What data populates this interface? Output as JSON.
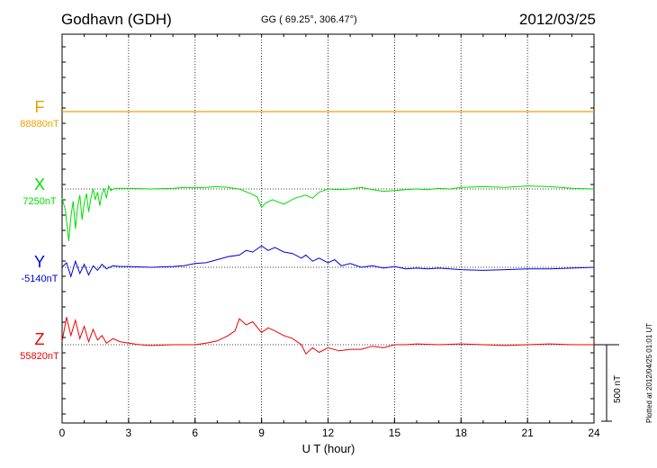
{
  "header": {
    "station": "Godhavn (GDH)",
    "coords": "GG ( 69.25°, 306.47°)",
    "date": "2012/03/25"
  },
  "plotted_note": "Plotted at 2012/04/25 01:01  UT",
  "scale_label": "500 nT",
  "chart_data": {
    "type": "line",
    "title": "Godhavn (GDH)",
    "xlabel": "U T (hour)",
    "ylabel": "",
    "xlim": [
      0,
      24
    ],
    "xticks": [
      "0",
      "3",
      "6",
      "9",
      "12",
      "15",
      "18",
      "21",
      "24"
    ],
    "grid": true,
    "scale_bar_nT": 500,
    "series": [
      {
        "name": "F",
        "baseline_label": "88880nT",
        "color": "#f0a000",
        "offset_nT": 0,
        "x": [
          0,
          1,
          2,
          3,
          4,
          5,
          6,
          7,
          8,
          9,
          10,
          11,
          12,
          13,
          14,
          15,
          16,
          17,
          18,
          19,
          20,
          21,
          22,
          23,
          24
        ],
        "y": [
          0,
          0,
          0,
          0,
          0,
          0,
          0,
          0,
          0,
          0,
          0,
          0,
          0,
          0,
          0,
          0,
          0,
          0,
          0,
          0,
          0,
          0,
          0,
          0,
          0
        ]
      },
      {
        "name": "X",
        "baseline_label": "7250nT",
        "color": "#00dd00",
        "offset_nT": 0,
        "x": [
          0,
          0.15,
          0.3,
          0.4,
          0.5,
          0.6,
          0.7,
          0.8,
          0.9,
          1.0,
          1.1,
          1.2,
          1.3,
          1.4,
          1.5,
          1.6,
          1.7,
          1.8,
          1.9,
          2.0,
          2.1,
          2.2,
          2.3,
          2.5,
          3,
          4,
          5,
          5.5,
          6,
          6.5,
          7,
          7.5,
          8,
          8.5,
          8.8,
          9.0,
          9.2,
          9.5,
          10,
          10.5,
          11,
          11.3,
          11.6,
          12,
          12.5,
          13,
          13.5,
          14,
          14.5,
          15,
          15.5,
          16,
          16.5,
          17,
          17.5,
          18,
          19,
          20,
          21,
          22,
          23,
          24
        ],
        "y": [
          -60,
          -140,
          -340,
          -180,
          -80,
          -260,
          -120,
          -40,
          -200,
          -90,
          -30,
          -150,
          -60,
          0,
          -70,
          -20,
          -110,
          -30,
          0,
          -60,
          20,
          -10,
          0,
          5,
          5,
          0,
          5,
          10,
          8,
          10,
          15,
          10,
          0,
          -30,
          -50,
          -120,
          -90,
          -70,
          -100,
          -60,
          -40,
          -60,
          -20,
          0,
          -5,
          0,
          10,
          -5,
          -15,
          -10,
          -5,
          0,
          -5,
          5,
          0,
          10,
          15,
          10,
          20,
          15,
          5,
          0
        ]
      },
      {
        "name": "Y",
        "baseline_label": "-5140nT",
        "color": "#0000dd",
        "offset_nT": 0,
        "x": [
          0,
          0.2,
          0.4,
          0.6,
          0.8,
          1.0,
          1.2,
          1.4,
          1.6,
          1.8,
          2.0,
          2.3,
          2.6,
          3,
          4,
          5,
          5.5,
          6,
          6.5,
          7,
          7.5,
          8,
          8.3,
          8.6,
          9.0,
          9.3,
          9.6,
          10,
          10.4,
          10.8,
          11,
          11.3,
          11.6,
          12,
          12.3,
          12.6,
          13,
          13.5,
          14,
          14.5,
          15,
          15.5,
          16,
          16.5,
          17,
          17.5,
          18,
          19,
          20,
          21,
          22,
          23,
          24
        ],
        "y": [
          0,
          30,
          -60,
          40,
          -40,
          20,
          -50,
          10,
          -20,
          20,
          -10,
          10,
          5,
          5,
          0,
          5,
          10,
          25,
          30,
          50,
          70,
          80,
          110,
          100,
          140,
          110,
          130,
          100,
          90,
          60,
          80,
          40,
          60,
          30,
          50,
          10,
          25,
          0,
          10,
          -5,
          5,
          -10,
          -5,
          -10,
          -5,
          -10,
          -15,
          -20,
          -15,
          -10,
          -10,
          -5,
          0
        ]
      },
      {
        "name": "Z",
        "baseline_label": "55820nT",
        "color": "#ee0000",
        "offset_nT": 0,
        "x": [
          0,
          0.2,
          0.4,
          0.6,
          0.8,
          1.0,
          1.2,
          1.4,
          1.6,
          1.8,
          2.0,
          2.3,
          2.6,
          3,
          3.5,
          4,
          5,
          6,
          6.5,
          7,
          7.5,
          7.8,
          8.0,
          8.3,
          8.6,
          9.0,
          9.3,
          9.6,
          10,
          10.4,
          10.8,
          11.0,
          11.3,
          11.6,
          12,
          12.5,
          13,
          13.5,
          14,
          14.5,
          15,
          15.5,
          16,
          17,
          18,
          19,
          20,
          21,
          22,
          23,
          24
        ],
        "y": [
          20,
          180,
          60,
          160,
          40,
          120,
          20,
          100,
          30,
          60,
          10,
          40,
          20,
          10,
          0,
          -5,
          0,
          0,
          10,
          25,
          60,
          90,
          170,
          130,
          150,
          80,
          110,
          90,
          60,
          40,
          0,
          -60,
          -20,
          -50,
          -20,
          -40,
          -30,
          -30,
          -10,
          -20,
          0,
          0,
          5,
          0,
          5,
          0,
          -5,
          0,
          5,
          0,
          0
        ]
      }
    ]
  }
}
